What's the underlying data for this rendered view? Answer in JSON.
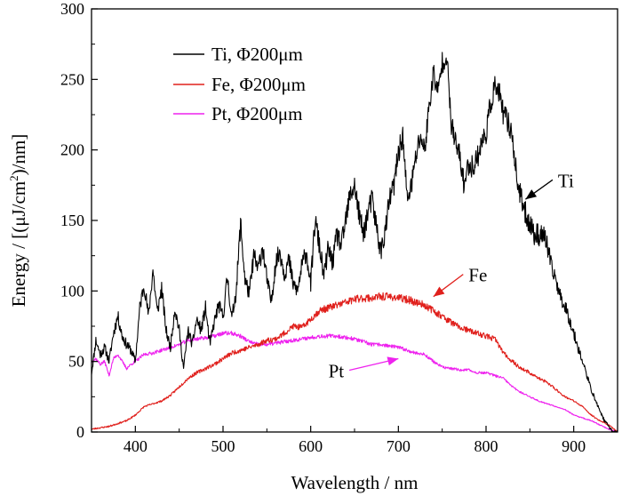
{
  "chart_data": {
    "type": "line",
    "title": "",
    "xlabel": "Wavelength / nm",
    "ylabel_parts": [
      "Energy / [(μJ/cm",
      "2",
      ")/nm]"
    ],
    "xlim": [
      350,
      950
    ],
    "ylim": [
      0,
      300
    ],
    "xticks": [
      400,
      500,
      600,
      700,
      800,
      900
    ],
    "yticks": [
      0,
      50,
      100,
      150,
      200,
      250,
      300
    ],
    "grid": false,
    "legend_position": "top-left",
    "series": [
      {
        "name": "Ti, Φ200μm",
        "color": "#000000",
        "noise": 7,
        "seed": 11,
        "x": [
          350,
          355,
          360,
          365,
          370,
          375,
          380,
          385,
          390,
          395,
          400,
          405,
          410,
          415,
          420,
          425,
          430,
          435,
          440,
          445,
          450,
          455,
          460,
          465,
          470,
          475,
          480,
          485,
          490,
          495,
          500,
          505,
          510,
          515,
          520,
          525,
          530,
          535,
          540,
          545,
          550,
          555,
          560,
          565,
          570,
          575,
          580,
          585,
          590,
          595,
          600,
          605,
          610,
          615,
          620,
          625,
          630,
          635,
          640,
          645,
          650,
          655,
          660,
          665,
          670,
          675,
          680,
          685,
          690,
          695,
          700,
          705,
          710,
          715,
          720,
          725,
          730,
          735,
          740,
          745,
          750,
          755,
          760,
          765,
          770,
          775,
          780,
          785,
          790,
          795,
          800,
          805,
          810,
          815,
          820,
          825,
          830,
          835,
          840,
          845,
          850,
          855,
          860,
          865,
          870,
          875,
          880,
          885,
          890,
          895,
          900,
          905,
          910,
          915,
          920,
          925,
          930,
          935,
          940,
          945,
          950
        ],
        "values": [
          42,
          65,
          55,
          60,
          50,
          70,
          82,
          68,
          62,
          58,
          50,
          88,
          105,
          82,
          115,
          85,
          102,
          72,
          60,
          88,
          72,
          45,
          72,
          62,
          80,
          72,
          88,
          62,
          78,
          90,
          82,
          110,
          80,
          100,
          148,
          108,
          98,
          125,
          115,
          132,
          108,
          92,
          120,
          128,
          112,
          122,
          105,
          100,
          118,
          128,
          105,
          150,
          132,
          110,
          130,
          120,
          140,
          132,
          150,
          168,
          175,
          155,
          140,
          155,
          165,
          145,
          128,
          142,
          165,
          175,
          198,
          210,
          165,
          175,
          195,
          210,
          200,
          230,
          255,
          240,
          262,
          268,
          220,
          205,
          195,
          175,
          190,
          188,
          195,
          205,
          212,
          232,
          245,
          240,
          225,
          220,
          210,
          180,
          165,
          155,
          148,
          140,
          140,
          140,
          132,
          115,
          108,
          95,
          90,
          80,
          70,
          60,
          50,
          40,
          30,
          22,
          15,
          8,
          4,
          0,
          0
        ]
      },
      {
        "name": "Fe, Φ200μm",
        "color": "#e0201c",
        "noise": 3.5,
        "seed": 23,
        "x": [
          350,
          360,
          370,
          380,
          390,
          400,
          410,
          420,
          430,
          440,
          450,
          460,
          470,
          480,
          490,
          500,
          510,
          520,
          530,
          540,
          550,
          560,
          570,
          580,
          590,
          600,
          610,
          620,
          630,
          640,
          650,
          660,
          670,
          680,
          690,
          700,
          710,
          720,
          730,
          740,
          750,
          760,
          770,
          780,
          790,
          800,
          810,
          820,
          830,
          840,
          850,
          860,
          870,
          880,
          890,
          900,
          910,
          920,
          930,
          940,
          950
        ],
        "values": [
          2,
          3,
          4,
          6,
          8,
          12,
          18,
          20,
          22,
          26,
          32,
          38,
          42,
          45,
          48,
          52,
          56,
          58,
          60,
          62,
          65,
          66,
          70,
          75,
          74,
          80,
          86,
          88,
          90,
          92,
          94,
          95,
          95,
          96,
          96,
          95,
          94,
          92,
          90,
          86,
          82,
          78,
          74,
          72,
          70,
          68,
          66,
          56,
          50,
          45,
          42,
          38,
          35,
          30,
          25,
          22,
          18,
          12,
          8,
          5,
          0
        ]
      },
      {
        "name": "Pt, Φ200μm",
        "color": "#ee22ee",
        "noise": 2.5,
        "seed": 37,
        "x": [
          350,
          355,
          360,
          365,
          370,
          375,
          380,
          385,
          390,
          395,
          400,
          410,
          420,
          430,
          440,
          450,
          460,
          470,
          480,
          490,
          500,
          510,
          520,
          530,
          540,
          550,
          560,
          570,
          580,
          590,
          600,
          610,
          620,
          630,
          640,
          650,
          660,
          670,
          680,
          690,
          700,
          710,
          720,
          730,
          740,
          750,
          760,
          770,
          780,
          790,
          800,
          810,
          820,
          830,
          840,
          850,
          860,
          870,
          880,
          890,
          900,
          910,
          920,
          930,
          940,
          950
        ],
        "values": [
          50,
          52,
          48,
          50,
          40,
          52,
          55,
          50,
          45,
          48,
          50,
          55,
          56,
          58,
          60,
          62,
          65,
          66,
          67,
          68,
          70,
          70,
          68,
          64,
          62,
          62,
          63,
          64,
          65,
          66,
          67,
          68,
          68,
          68,
          67,
          66,
          64,
          62,
          62,
          61,
          60,
          58,
          56,
          55,
          50,
          46,
          45,
          44,
          44,
          42,
          42,
          40,
          38,
          32,
          28,
          25,
          22,
          20,
          18,
          16,
          12,
          10,
          8,
          5,
          2,
          0
        ]
      }
    ],
    "annotations": [
      {
        "label": "Ti",
        "series_index": 0,
        "x_data": 845,
        "y_data": 165,
        "text_x_data": 880,
        "text_y_data": 175
      },
      {
        "label": "Fe",
        "series_index": 1,
        "x_data": 740,
        "y_data": 96,
        "text_x_data": 778,
        "text_y_data": 108
      },
      {
        "label": "Pt",
        "series_index": 2,
        "x_data": 700,
        "y_data": 52,
        "text_x_data": 640,
        "text_y_data": 40
      }
    ]
  }
}
